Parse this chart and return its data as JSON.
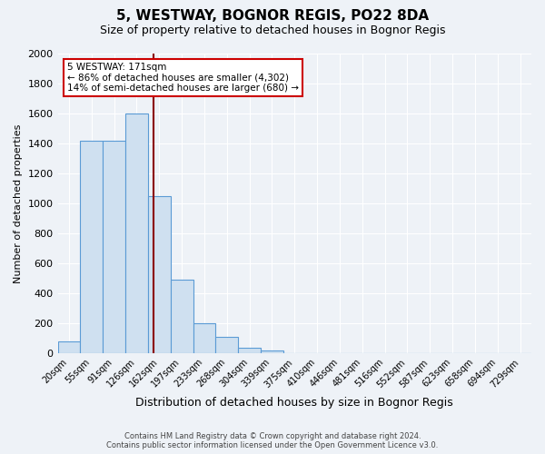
{
  "title": "5, WESTWAY, BOGNOR REGIS, PO22 8DA",
  "subtitle": "Size of property relative to detached houses in Bognor Regis",
  "xlabel": "Distribution of detached houses by size in Bognor Regis",
  "ylabel": "Number of detached properties",
  "bar_labels": [
    "20sqm",
    "55sqm",
    "91sqm",
    "126sqm",
    "162sqm",
    "197sqm",
    "233sqm",
    "268sqm",
    "304sqm",
    "339sqm",
    "375sqm",
    "410sqm",
    "446sqm",
    "481sqm",
    "516sqm",
    "552sqm",
    "587sqm",
    "623sqm",
    "658sqm",
    "694sqm",
    "729sqm"
  ],
  "bar_values": [
    80,
    1420,
    1420,
    1600,
    1050,
    490,
    200,
    105,
    35,
    20,
    0,
    0,
    0,
    0,
    0,
    0,
    0,
    0,
    0,
    0,
    0
  ],
  "bar_color": "#cfe0f0",
  "bar_edge_color": "#5b9bd5",
  "ylim": [
    0,
    2000
  ],
  "yticks": [
    0,
    200,
    400,
    600,
    800,
    1000,
    1200,
    1400,
    1600,
    1800,
    2000
  ],
  "annotation_title": "5 WESTWAY: 171sqm",
  "annotation_line1": "← 86% of detached houses are smaller (4,302)",
  "annotation_line2": "14% of semi-detached houses are larger (680) →",
  "annotation_box_color": "#ffffff",
  "annotation_box_edge": "#cc0000",
  "title_fontsize": 11,
  "subtitle_fontsize": 9,
  "footer_line1": "Contains HM Land Registry data © Crown copyright and database right 2024.",
  "footer_line2": "Contains public sector information licensed under the Open Government Licence v3.0.",
  "bg_color": "#eef2f7",
  "plot_bg_color": "#eef2f7",
  "grid_color": "#ffffff",
  "vline_color": "#8b0000"
}
